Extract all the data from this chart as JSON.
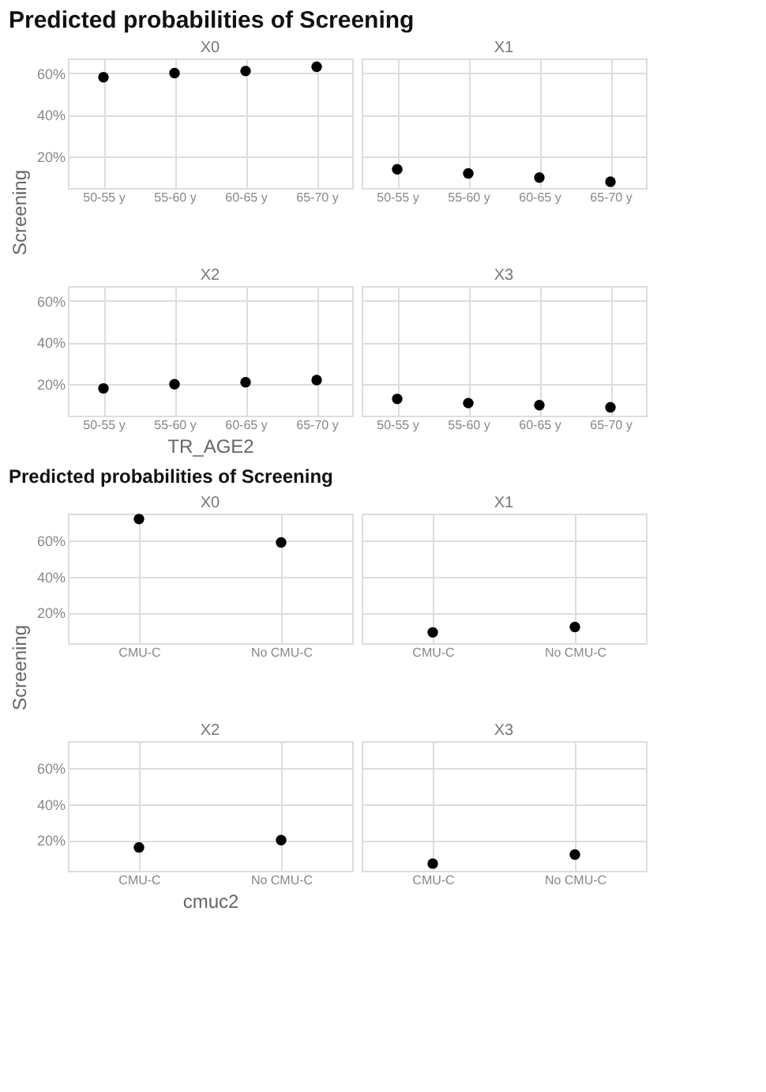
{
  "chart_data": [
    {
      "type": "scatter",
      "title": "Predicted probabilities of Screening",
      "subtitle": "X0",
      "ylabel": "Screening",
      "categories": [
        "50-55 y",
        "55-60 y",
        "60-65 y",
        "65-70 y"
      ],
      "values": [
        58,
        60,
        61,
        63
      ],
      "color": "#000000",
      "ylim": [
        5,
        67
      ],
      "yticks": [
        {
          "value": 20,
          "label": "20%"
        },
        {
          "value": 40,
          "label": "40%"
        },
        {
          "value": 60,
          "label": "60%"
        }
      ],
      "grid": true,
      "marker": "circle"
    },
    {
      "type": "scatter",
      "subtitle": "X1",
      "categories": [
        "50-55 y",
        "55-60 y",
        "60-65 y",
        "65-70 y"
      ],
      "values": [
        14,
        12,
        10,
        8
      ],
      "color": "#000000",
      "ylim": [
        5,
        67
      ],
      "yticks": [
        20,
        40,
        60
      ],
      "grid": true,
      "marker": "circle",
      "tick_labels": "x"
    },
    {
      "type": "scatter",
      "subtitle": "X2",
      "xlabel": "TR_AGE2",
      "categories": [
        "50-55 y",
        "55-60 y",
        "60-65 y",
        "65-70 y"
      ],
      "values": [
        18,
        20,
        21,
        22
      ],
      "color": "#000000",
      "ylim": [
        5,
        67
      ],
      "yticks": [
        {
          "value": 20,
          "label": "20%"
        },
        {
          "value": 40,
          "label": "40%"
        },
        {
          "value": 60,
          "label": "60%"
        }
      ],
      "grid": true,
      "marker": "circle"
    },
    {
      "type": "scatter",
      "subtitle": "X3",
      "categories": [
        "50-55 y",
        "55-60 y",
        "60-65 y",
        "65-70 y"
      ],
      "values": [
        13,
        11,
        10,
        9
      ],
      "color": "#000000",
      "ylim": [
        5,
        67
      ],
      "yticks": [
        20,
        40,
        60
      ],
      "grid": true,
      "marker": "circle",
      "tick_labels": "x"
    },
    {
      "type": "scatter",
      "title": "Predicted probabilities of Screening",
      "subtitle": "X0",
      "ylabel": "Screening",
      "categories": [
        "CMU-C",
        "No CMU-C"
      ],
      "values": [
        72,
        59
      ],
      "color": "#000000",
      "ylim": [
        3,
        75
      ],
      "yticks": [
        {
          "value": 20,
          "label": "20%"
        },
        {
          "value": 40,
          "label": "40%"
        },
        {
          "value": 60,
          "label": "60%"
        }
      ],
      "grid": true,
      "marker": "circle"
    },
    {
      "type": "scatter",
      "subtitle": "X1",
      "categories": [
        "CMU-C",
        "No CMU-C"
      ],
      "values": [
        9,
        12
      ],
      "color": "#000000",
      "ylim": [
        3,
        75
      ],
      "yticks": [
        20,
        40,
        60
      ],
      "grid": true,
      "marker": "circle",
      "tick_labels": "x"
    },
    {
      "type": "scatter",
      "subtitle": "X2",
      "xlabel": "cmuc2",
      "categories": [
        "CMU-C",
        "No CMU-C"
      ],
      "values": [
        16,
        20
      ],
      "color": "#000000",
      "ylim": [
        3,
        75
      ],
      "yticks": [
        {
          "value": 20,
          "label": "20%"
        },
        {
          "value": 40,
          "label": "40%"
        },
        {
          "value": 60,
          "label": "60%"
        }
      ],
      "grid": true,
      "marker": "circle"
    },
    {
      "type": "scatter",
      "subtitle": "X3",
      "categories": [
        "CMU-C",
        "No CMU-C"
      ],
      "values": [
        7,
        12
      ],
      "color": "#000000",
      "ylim": [
        3,
        75
      ],
      "yticks": [
        20,
        40,
        60
      ],
      "grid": true,
      "marker": "circle",
      "tick_labels": "x"
    }
  ]
}
